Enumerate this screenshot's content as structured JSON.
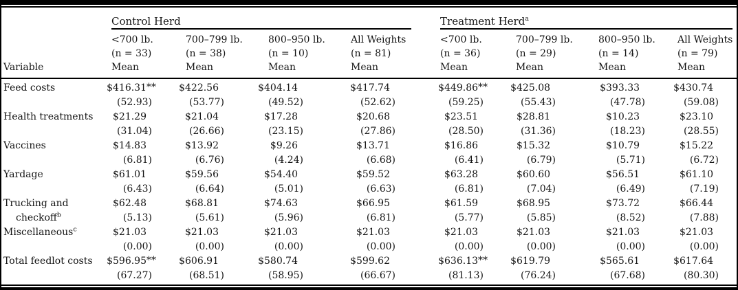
{
  "page": {
    "background": "#ffffff",
    "text_color": "#141414",
    "rule_color": "#000000"
  },
  "table": {
    "variable_header": "Variable",
    "groups": [
      {
        "label": "Control Herd",
        "sup": ""
      },
      {
        "label": "Treatment Herd",
        "sup": "a"
      }
    ],
    "columns": [
      {
        "range": "<700 lb.",
        "n": "(n = 33)",
        "stat": "Mean"
      },
      {
        "range": "700–799 lb.",
        "n": "(n = 38)",
        "stat": "Mean"
      },
      {
        "range": "800–950 lb.",
        "n": "(n = 10)",
        "stat": "Mean"
      },
      {
        "range": "All Weights",
        "n": "(n = 81)",
        "stat": "Mean"
      },
      {
        "range": "<700 lb.",
        "n": "(n = 36)",
        "stat": "Mean"
      },
      {
        "range": "700–799 lb.",
        "n": "(n = 29)",
        "stat": "Mean"
      },
      {
        "range": "800–950 lb.",
        "n": "(n = 14)",
        "stat": "Mean"
      },
      {
        "range": "All Weights",
        "n": "(n = 79)",
        "stat": "Mean"
      }
    ],
    "rows": [
      {
        "label": "Feed costs",
        "label2": "",
        "sup": "",
        "cells": [
          {
            "mean": "$416.31",
            "stars": "**",
            "sd": "(52.93)"
          },
          {
            "mean": "$422.56",
            "stars": "",
            "sd": "(53.77)"
          },
          {
            "mean": "$404.14",
            "stars": "",
            "sd": "(49.52)"
          },
          {
            "mean": "$417.74",
            "stars": "",
            "sd": "(52.62)"
          },
          {
            "mean": "$449.86",
            "stars": "**",
            "sd": "(59.25)"
          },
          {
            "mean": "$425.08",
            "stars": "",
            "sd": "(55.43)"
          },
          {
            "mean": "$393.33",
            "stars": "",
            "sd": "(47.78)"
          },
          {
            "mean": "$430.74",
            "stars": "",
            "sd": "(59.08)"
          }
        ]
      },
      {
        "label": "Health treatments",
        "label2": "",
        "sup": "",
        "cells": [
          {
            "mean": "$21.29",
            "stars": "",
            "sd": "(31.04)"
          },
          {
            "mean": "$21.04",
            "stars": "",
            "sd": "(26.66)"
          },
          {
            "mean": "$17.28",
            "stars": "",
            "sd": "(23.15)"
          },
          {
            "mean": "$20.68",
            "stars": "",
            "sd": "(27.86)"
          },
          {
            "mean": "$23.51",
            "stars": "",
            "sd": "(28.50)"
          },
          {
            "mean": "$28.81",
            "stars": "",
            "sd": "(31.36)"
          },
          {
            "mean": "$10.23",
            "stars": "",
            "sd": "(18.23)"
          },
          {
            "mean": "$23.10",
            "stars": "",
            "sd": "(28.55)"
          }
        ]
      },
      {
        "label": "Vaccines",
        "label2": "",
        "sup": "",
        "cells": [
          {
            "mean": "$14.83",
            "stars": "",
            "sd": "(6.81)"
          },
          {
            "mean": "$13.92",
            "stars": "",
            "sd": "(6.76)"
          },
          {
            "mean": "$9.26",
            "stars": "",
            "sd": "(4.24)"
          },
          {
            "mean": "$13.71",
            "stars": "",
            "sd": "(6.68)"
          },
          {
            "mean": "$16.86",
            "stars": "",
            "sd": "(6.41)"
          },
          {
            "mean": "$15.32",
            "stars": "",
            "sd": "(6.79)"
          },
          {
            "mean": "$10.79",
            "stars": "",
            "sd": "(5.71)"
          },
          {
            "mean": "$15.22",
            "stars": "",
            "sd": "(6.72)"
          }
        ]
      },
      {
        "label": "Yardage",
        "label2": "",
        "sup": "",
        "cells": [
          {
            "mean": "$61.01",
            "stars": "",
            "sd": "(6.43)"
          },
          {
            "mean": "$59.56",
            "stars": "",
            "sd": "(6.64)"
          },
          {
            "mean": "$54.40",
            "stars": "",
            "sd": "(5.01)"
          },
          {
            "mean": "$59.52",
            "stars": "",
            "sd": "(6.63)"
          },
          {
            "mean": "$63.28",
            "stars": "",
            "sd": "(6.81)"
          },
          {
            "mean": "$60.60",
            "stars": "",
            "sd": "(7.04)"
          },
          {
            "mean": "$56.51",
            "stars": "",
            "sd": "(6.49)"
          },
          {
            "mean": "$61.10",
            "stars": "",
            "sd": "(7.19)"
          }
        ]
      },
      {
        "label": "Trucking and",
        "label2": "checkoff",
        "sup": "b",
        "cells": [
          {
            "mean": "$62.48",
            "stars": "",
            "sd": "(5.13)"
          },
          {
            "mean": "$68.81",
            "stars": "",
            "sd": "(5.61)"
          },
          {
            "mean": "$74.63",
            "stars": "",
            "sd": "(5.96)"
          },
          {
            "mean": "$66.95",
            "stars": "",
            "sd": "(6.81)"
          },
          {
            "mean": "$61.59",
            "stars": "",
            "sd": "(5.77)"
          },
          {
            "mean": "$68.95",
            "stars": "",
            "sd": "(5.85)"
          },
          {
            "mean": "$73.72",
            "stars": "",
            "sd": "(8.52)"
          },
          {
            "mean": "$66.44",
            "stars": "",
            "sd": "(7.88)"
          }
        ]
      },
      {
        "label": "Miscellaneous",
        "label2": "",
        "sup": "c",
        "cells": [
          {
            "mean": "$21.03",
            "stars": "",
            "sd": "(0.00)"
          },
          {
            "mean": "$21.03",
            "stars": "",
            "sd": "(0.00)"
          },
          {
            "mean": "$21.03",
            "stars": "",
            "sd": "(0.00)"
          },
          {
            "mean": "$21.03",
            "stars": "",
            "sd": "(0.00)"
          },
          {
            "mean": "$21.03",
            "stars": "",
            "sd": "(0.00)"
          },
          {
            "mean": "$21.03",
            "stars": "",
            "sd": "(0.00)"
          },
          {
            "mean": "$21.03",
            "stars": "",
            "sd": "(0.00)"
          },
          {
            "mean": "$21.03",
            "stars": "",
            "sd": "(0.00)"
          }
        ]
      },
      {
        "label": "Total feedlot costs",
        "label2": "",
        "sup": "",
        "cells": [
          {
            "mean": "$596.95",
            "stars": "**",
            "sd": "(67.27)"
          },
          {
            "mean": "$606.91",
            "stars": "",
            "sd": "(68.51)"
          },
          {
            "mean": "$580.74",
            "stars": "",
            "sd": "(58.95)"
          },
          {
            "mean": "$599.62",
            "stars": "",
            "sd": "(66.67)"
          },
          {
            "mean": "$636.13",
            "stars": "**",
            "sd": "(81.13)"
          },
          {
            "mean": "$619.79",
            "stars": "",
            "sd": "(76.24)"
          },
          {
            "mean": "$565.61",
            "stars": "",
            "sd": "(67.68)"
          },
          {
            "mean": "$617.64",
            "stars": "",
            "sd": "(80.30)"
          }
        ]
      }
    ]
  }
}
